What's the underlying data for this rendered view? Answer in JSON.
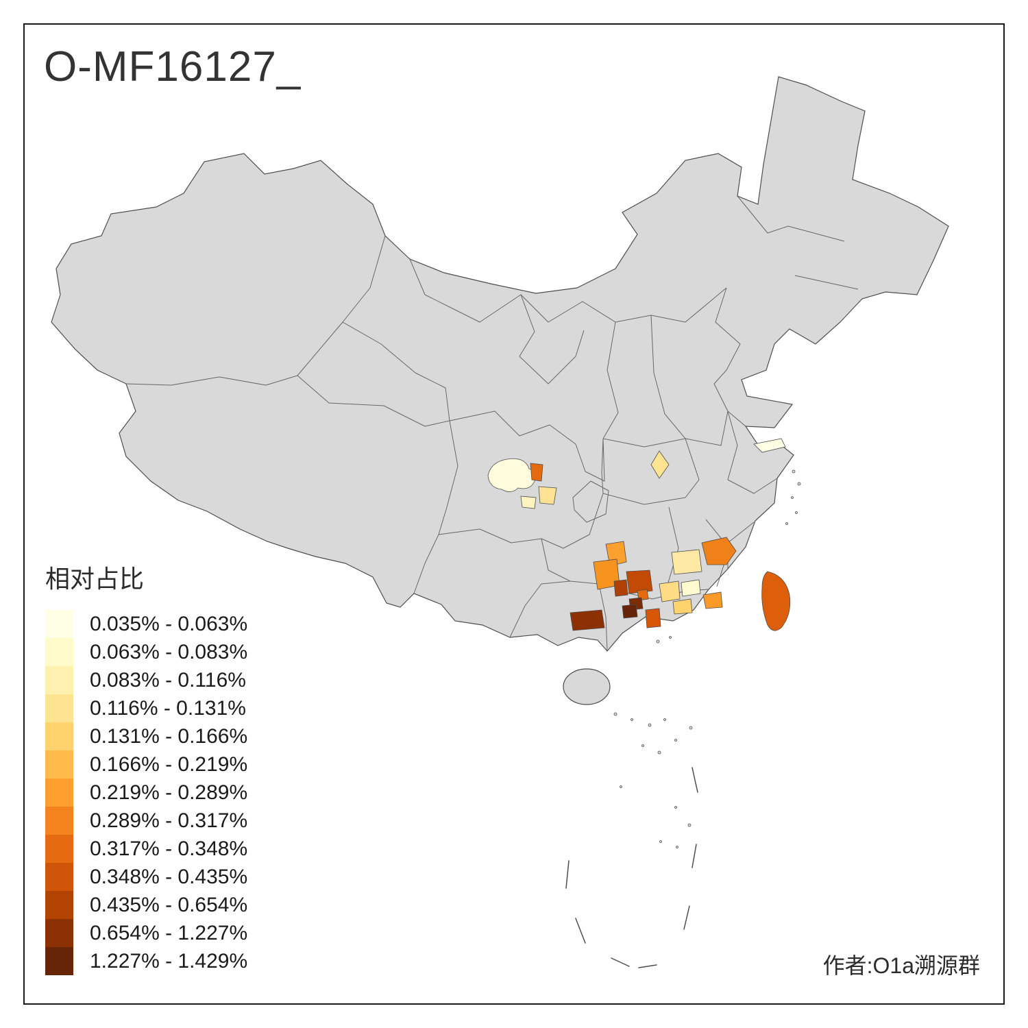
{
  "title": "O-MF16127_",
  "author": "作者:O1a溯源群",
  "legend": {
    "title": "相对占比",
    "items": [
      {
        "label": "0.035% - 0.063%",
        "color": "#FFFFE5"
      },
      {
        "label": "0.063% - 0.083%",
        "color": "#FFFAC9"
      },
      {
        "label": "0.083% - 0.116%",
        "color": "#FEF0AE"
      },
      {
        "label": "0.116% - 0.131%",
        "color": "#FEE391"
      },
      {
        "label": "0.131% - 0.166%",
        "color": "#FED26C"
      },
      {
        "label": "0.166% - 0.219%",
        "color": "#FEBA4A"
      },
      {
        "label": "0.219% - 0.289%",
        "color": "#FE9E2E"
      },
      {
        "label": "0.289% - 0.317%",
        "color": "#F5831D"
      },
      {
        "label": "0.317% - 0.348%",
        "color": "#E56A10"
      },
      {
        "label": "0.348% - 0.435%",
        "color": "#D05508"
      },
      {
        "label": "0.435% - 0.654%",
        "color": "#B24303"
      },
      {
        "label": "0.654% - 1.227%",
        "color": "#8C3104"
      },
      {
        "label": "1.227% - 1.429%",
        "color": "#662506"
      }
    ]
  },
  "map": {
    "land_color": "#D9D9D9",
    "border_color": "#4D4D4D",
    "regions": [
      {
        "name": "sichuan-west-cream",
        "color": "#FFFCDD"
      },
      {
        "name": "sichuan-center-orange",
        "color": "#E5690F"
      },
      {
        "name": "sichuan-southeast-pale",
        "color": "#FEE294"
      },
      {
        "name": "sichuan-south-pale",
        "color": "#FDF3C0"
      },
      {
        "name": "hubei-pale",
        "color": "#FEE391"
      },
      {
        "name": "shanghai-cream",
        "color": "#FFFFE5"
      },
      {
        "name": "jiangxi-fujian-orange",
        "color": "#F08018"
      },
      {
        "name": "hunan-west-orange",
        "color": "#FBA02E"
      },
      {
        "name": "guizhou-east-orange",
        "color": "#F79420"
      },
      {
        "name": "hunan-south-darkorange",
        "color": "#C24A04"
      },
      {
        "name": "guangxi-northeast-darkorange",
        "color": "#B04003"
      },
      {
        "name": "guangxi-center-brown",
        "color": "#7A2D05"
      },
      {
        "name": "guangxi-center-darkest",
        "color": "#662506"
      },
      {
        "name": "guangxi-west-brown",
        "color": "#8C3104"
      },
      {
        "name": "guangxi-southeast-orange",
        "color": "#D85608"
      },
      {
        "name": "guangxi-mid-orange",
        "color": "#E5690F"
      },
      {
        "name": "guangdong-west-pale",
        "color": "#FEDC86"
      },
      {
        "name": "guangdong-north-cream",
        "color": "#FFFBD0"
      },
      {
        "name": "guangdong-center-yellow",
        "color": "#FED26C"
      },
      {
        "name": "guangdong-east-orange",
        "color": "#FB9A29"
      },
      {
        "name": "hunan-northeast-pale",
        "color": "#FEE8A4"
      },
      {
        "name": "taiwan-orange",
        "color": "#DE5F0B"
      }
    ]
  }
}
